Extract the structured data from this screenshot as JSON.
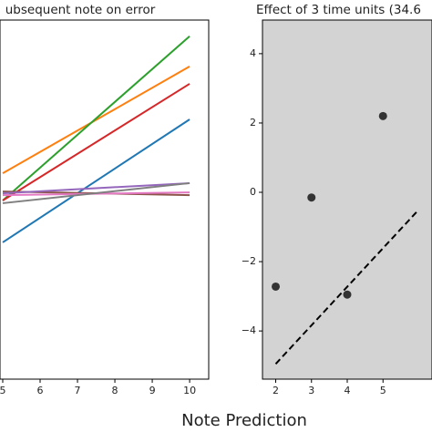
{
  "chart_data": [
    {
      "type": "line",
      "title": "ubsequent note on error",
      "x": [
        5,
        10
      ],
      "xlim": [
        4.927,
        10.51
      ],
      "xticks": [
        5,
        6,
        7,
        8,
        9,
        10
      ],
      "ylim": [
        -6,
        6
      ],
      "series": [
        {
          "color": "#1f77b4",
          "values": [
            -1.43,
            2.68
          ]
        },
        {
          "color": "#ff7f0e",
          "values": [
            0.88,
            4.45
          ]
        },
        {
          "color": "#2ca02c",
          "values": [
            -0.03,
            5.46
          ]
        },
        {
          "color": "#d62728",
          "values": [
            -0.03,
            3.87
          ]
        },
        {
          "color": "#8c564b",
          "values": [
            0.27,
            0.15
          ]
        },
        {
          "color": "#e377c2",
          "values": [
            0.15,
            0.24
          ]
        },
        {
          "color": "#9467bd",
          "values": [
            0.21,
            0.55
          ]
        },
        {
          "color": "#7f7f7f",
          "values": [
            -0.12,
            0.55
          ]
        }
      ]
    },
    {
      "type": "scatter",
      "title": "Effect of 3 time units (34.6",
      "xlim": [
        1.63,
        6.37
      ],
      "xticks": [
        2,
        3,
        4,
        5
      ],
      "ylim": [
        -5.39,
        4.97
      ],
      "yticks": [
        {
          "value": -4,
          "label": "−4"
        },
        {
          "value": -2,
          "label": "−2"
        },
        0,
        2,
        4
      ],
      "background": "#d3d3d3",
      "series": [
        {
          "color": "#333333",
          "x": [
            2,
            3,
            4,
            5
          ],
          "values": [
            -2.72,
            -0.15,
            -2.95,
            2.2
          ]
        },
        {
          "color": "#000000",
          "kind": "dashed-line",
          "x": [
            2,
            6
          ],
          "values": [
            -4.95,
            -0.5
          ]
        }
      ]
    }
  ],
  "supxlabel": "Note Prediction"
}
